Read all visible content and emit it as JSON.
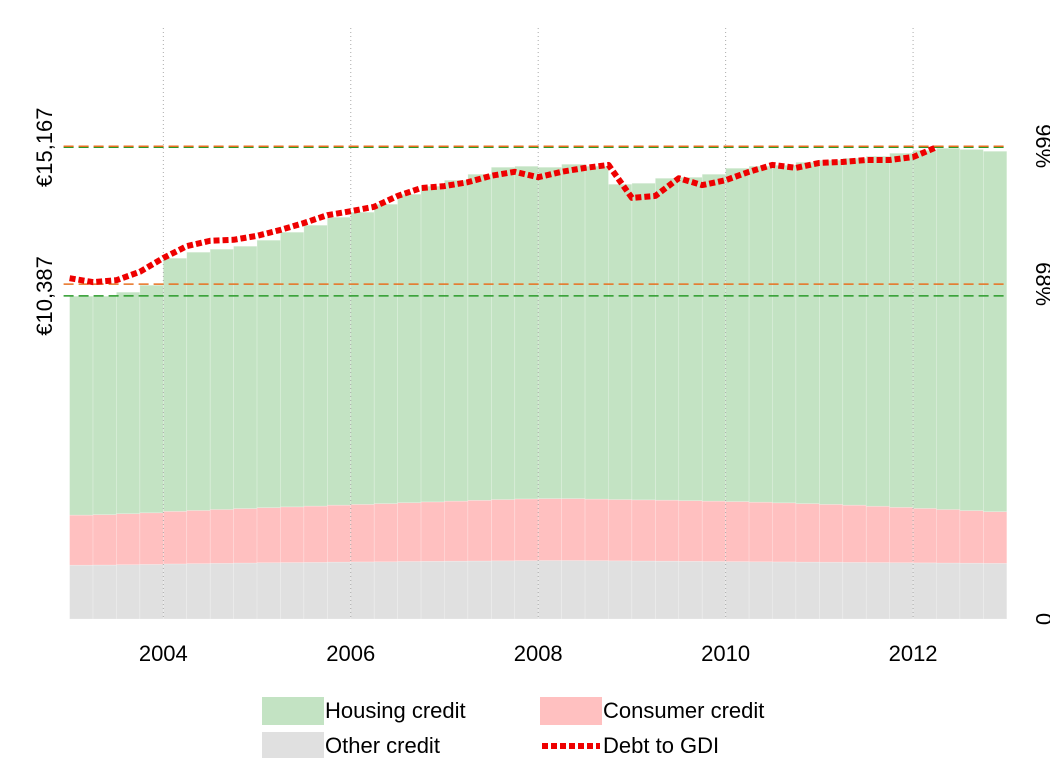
{
  "chart_data": {
    "type": "bar",
    "stacked": true,
    "x": [
      2003,
      2003.25,
      2003.5,
      2003.75,
      2004,
      2004.25,
      2004.5,
      2004.75,
      2005,
      2005.25,
      2005.5,
      2005.75,
      2006,
      2006.25,
      2006.5,
      2006.75,
      2007,
      2007.25,
      2007.5,
      2007.75,
      2008,
      2008.25,
      2008.5,
      2008.75,
      2009,
      2009.25,
      2009.5,
      2009.75,
      2010,
      2010.25,
      2010.5,
      2010.75,
      2011,
      2011.25,
      2011.5,
      2011.75,
      2012,
      2012.25,
      2012.5,
      2012.75
    ],
    "series": [
      {
        "name": "Housing credit",
        "color": "#c3e3c3",
        "values": [
          7038,
          7023,
          7122,
          7316,
          8139,
          8302,
          8368,
          8434,
          8597,
          8829,
          9029,
          9256,
          9392,
          9624,
          9915,
          10147,
          10315,
          10483,
          10683,
          10695,
          10653,
          10749,
          10700,
          10137,
          10179,
          10349,
          10396,
          10508,
          10716,
          10800,
          10852,
          10973,
          11063,
          11152,
          11251,
          11383,
          11514,
          11613,
          11611,
          11587
        ]
      },
      {
        "name": "Consumer credit",
        "color": "#ffc0c0",
        "values": [
          1610,
          1620,
          1640,
          1660,
          1690,
          1710,
          1730,
          1750,
          1770,
          1790,
          1810,
          1830,
          1850,
          1870,
          1890,
          1910,
          1930,
          1950,
          1970,
          1985,
          1990,
          1990,
          1980,
          1970,
          1965,
          1960,
          1950,
          1940,
          1930,
          1915,
          1900,
          1880,
          1860,
          1840,
          1810,
          1780,
          1750,
          1720,
          1690,
          1660
        ]
      },
      {
        "name": "Other credit",
        "color": "#e0e0e0",
        "values": [
          1730,
          1735,
          1745,
          1755,
          1770,
          1780,
          1790,
          1800,
          1810,
          1815,
          1820,
          1830,
          1835,
          1840,
          1850,
          1855,
          1860,
          1865,
          1870,
          1875,
          1880,
          1880,
          1875,
          1870,
          1865,
          1860,
          1855,
          1850,
          1845,
          1840,
          1835,
          1830,
          1825,
          1820,
          1815,
          1810,
          1805,
          1800,
          1795,
          1790
        ]
      },
      {
        "name": "Debt to GDI",
        "color": "#ee0000",
        "type": "line",
        "axis": "y2",
        "values": [
          69.2,
          68.4,
          68.8,
          70.5,
          73.3,
          75.7,
          76.8,
          77.0,
          77.8,
          79.0,
          80.4,
          82.0,
          82.8,
          83.7,
          85.9,
          87.5,
          87.9,
          88.7,
          90.0,
          90.8,
          89.7,
          90.8,
          91.6,
          92.2,
          85.5,
          85.9,
          89.5,
          88.1,
          89.1,
          90.8,
          92.2,
          91.6,
          92.6,
          92.8,
          93.2,
          93.2,
          93.8,
          95.8,
          null,
          null
        ]
      }
    ],
    "xlim": [
      2003,
      2013
    ],
    "xticks": [
      2004,
      2006,
      2008,
      2010,
      2012
    ],
    "ylim": [
      0,
      19000
    ],
    "yticks": [
      {
        "value": 10387,
        "label": "€10,387"
      },
      {
        "value": 15167,
        "label": "€15,167"
      }
    ],
    "y2lim": [
      0,
      120
    ],
    "y2ticks": [
      0,
      {
        "value": 68,
        "label": "68%"
      },
      {
        "value": 96,
        "label": "96%"
      }
    ],
    "ytick_line_color": "#2a9a2a",
    "y2tick_line_color": "#e87020",
    "grid": true,
    "legend": "bottom"
  }
}
